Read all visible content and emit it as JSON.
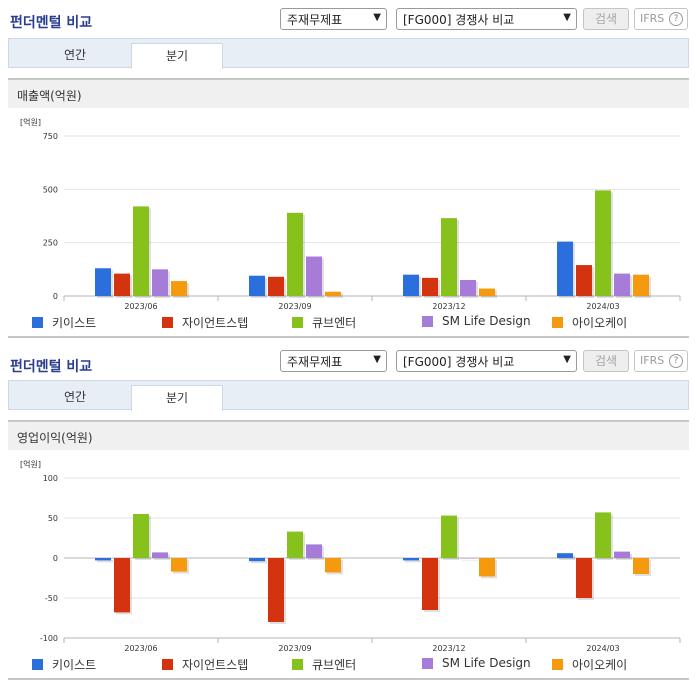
{
  "panels": [
    {
      "title": "펀더멘털 비교",
      "select_type": "주재무제표",
      "select_compare": "[FG000] 경쟁사 비교",
      "search_label": "검색",
      "ifrs_label": "IFRS",
      "tabs": [
        {
          "label": "연간"
        },
        {
          "label": "분기"
        }
      ],
      "active_tab": "분기",
      "section_title": "매출액(억원)",
      "unit": "[억원]"
    },
    {
      "title": "펀더멘털 비교",
      "select_type": "주재무제표",
      "select_compare": "[FG000] 경쟁사 비교",
      "search_label": "검색",
      "ifrs_label": "IFRS",
      "tabs": [
        {
          "label": "연간"
        },
        {
          "label": "분기"
        }
      ],
      "active_tab": "분기",
      "section_title": "영업이익(억원)",
      "unit": "[억원]"
    }
  ],
  "legend": [
    {
      "name": "키이스트",
      "color": "#2a6fdb"
    },
    {
      "name": "자이언트스텝",
      "color": "#d4330f"
    },
    {
      "name": "큐브엔터",
      "color": "#86c21b"
    },
    {
      "name": "SM Life Design",
      "color": "#a77bd8"
    },
    {
      "name": "아이오케이",
      "color": "#f59a0f"
    }
  ],
  "chart_data": [
    {
      "type": "bar",
      "title": "매출액(억원)",
      "ylabel": "[억원]",
      "categories": [
        "2023/06",
        "2023/09",
        "2023/12",
        "2024/03"
      ],
      "ylim": [
        0,
        750
      ],
      "yticks": [
        "750",
        "500",
        "250",
        "0"
      ],
      "ytick_values": [
        750,
        500,
        250,
        0
      ],
      "series": [
        {
          "name": "키이스트",
          "values": [
            130,
            95,
            100,
            255
          ]
        },
        {
          "name": "자이언트스텝",
          "values": [
            105,
            90,
            85,
            145
          ]
        },
        {
          "name": "큐브엔터",
          "values": [
            420,
            390,
            365,
            495
          ]
        },
        {
          "name": "SM Life Design",
          "values": [
            125,
            185,
            75,
            105
          ]
        },
        {
          "name": "아이오케이",
          "values": [
            70,
            20,
            35,
            100
          ]
        }
      ]
    },
    {
      "type": "bar",
      "title": "영업이익(억원)",
      "ylabel": "[억원]",
      "categories": [
        "2023/06",
        "2023/09",
        "2023/12",
        "2024/03"
      ],
      "ylim": [
        -100,
        100
      ],
      "yticks": [
        "100",
        "50",
        "0",
        "-50",
        "-100"
      ],
      "ytick_values": [
        100,
        50,
        0,
        -50,
        -100
      ],
      "series": [
        {
          "name": "키이스트",
          "values": [
            -3,
            -4,
            -3,
            6
          ]
        },
        {
          "name": "자이언트스텝",
          "values": [
            -68,
            -80,
            -65,
            -50
          ]
        },
        {
          "name": "큐브엔터",
          "values": [
            55,
            33,
            53,
            57
          ]
        },
        {
          "name": "SM Life Design",
          "values": [
            7,
            17,
            0,
            8
          ]
        },
        {
          "name": "아이오케이",
          "values": [
            -17,
            -18,
            -23,
            -20
          ]
        }
      ]
    }
  ]
}
